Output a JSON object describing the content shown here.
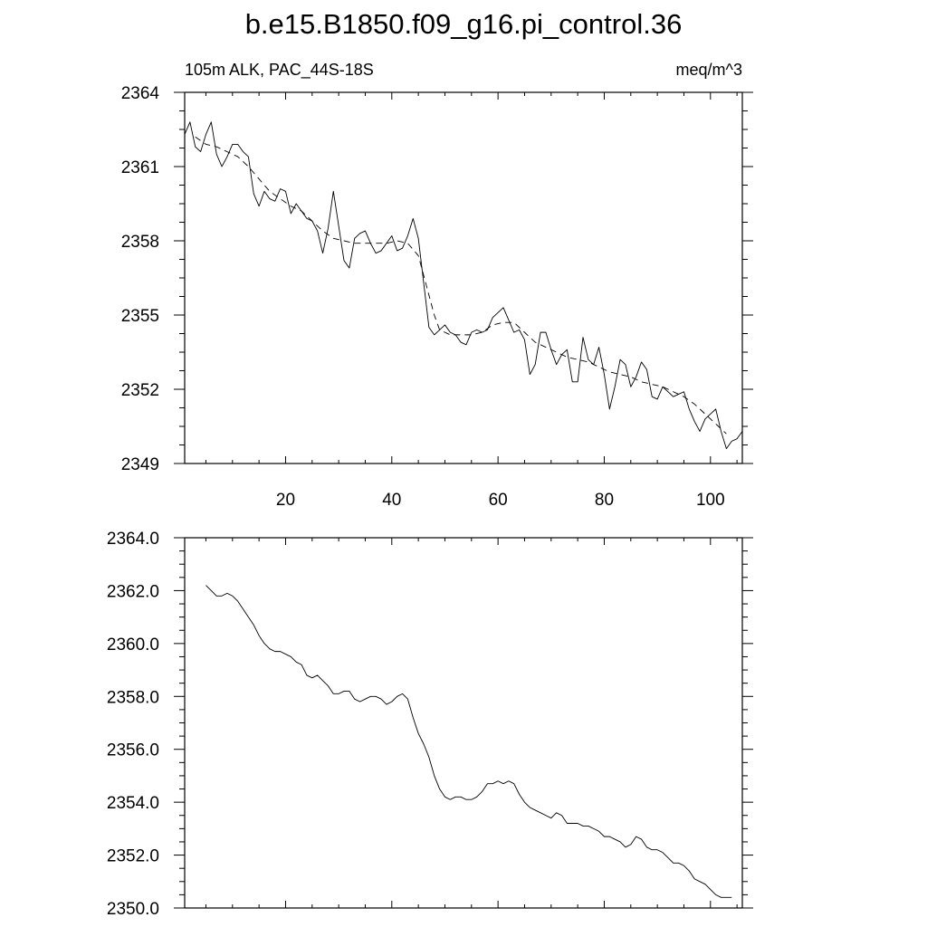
{
  "page": {
    "title": "b.e15.B1850.f09_g16.pi_control.36",
    "left_string": "105m ALK, PAC_44S-18S",
    "right_string": "meq/m^3"
  },
  "chart_data": [
    {
      "type": "line",
      "title": "",
      "xlabel": "",
      "ylabel": "",
      "xlim": [
        1,
        106
      ],
      "ylim": [
        2349,
        2364
      ],
      "grid": false,
      "x_ticks": [
        20,
        40,
        60,
        80,
        100
      ],
      "x_tick_labels": [
        "20",
        "40",
        "60",
        "80",
        "100"
      ],
      "y_ticks": [
        2349,
        2352,
        2355,
        2358,
        2361,
        2364
      ],
      "y_tick_labels": [
        "2349",
        "2352",
        "2355",
        "2358",
        "2361",
        "2364"
      ],
      "series": [
        {
          "style": "solid",
          "x": [
            1,
            2,
            3,
            4,
            5,
            6,
            7,
            8,
            9,
            10,
            11,
            12,
            13,
            14,
            15,
            16,
            17,
            18,
            19,
            20,
            21,
            22,
            23,
            24,
            25,
            26,
            27,
            28,
            29,
            30,
            31,
            32,
            33,
            34,
            35,
            36,
            37,
            38,
            39,
            40,
            41,
            42,
            43,
            44,
            45,
            46,
            47,
            48,
            49,
            50,
            51,
            52,
            53,
            54,
            55,
            56,
            57,
            58,
            59,
            60,
            61,
            62,
            63,
            64,
            65,
            66,
            67,
            68,
            69,
            70,
            71,
            72,
            73,
            74,
            75,
            76,
            77,
            78,
            79,
            80,
            81,
            82,
            83,
            84,
            85,
            86,
            87,
            88,
            89,
            90,
            91,
            92,
            93,
            94,
            95,
            96,
            97,
            98,
            99,
            100,
            101,
            102,
            103,
            104,
            105,
            106
          ],
          "values": [
            2362.3,
            2362.8,
            2361.8,
            2361.6,
            2362.3,
            2362.8,
            2361.5,
            2361.0,
            2361.4,
            2361.9,
            2361.9,
            2361.6,
            2361.4,
            2359.9,
            2359.4,
            2360.0,
            2359.7,
            2359.6,
            2360.1,
            2360.0,
            2359.1,
            2359.5,
            2359.2,
            2358.9,
            2358.8,
            2358.4,
            2357.5,
            2358.5,
            2360.0,
            2358.6,
            2357.2,
            2356.9,
            2358.1,
            2358.3,
            2358.4,
            2357.9,
            2357.5,
            2357.6,
            2357.9,
            2358.2,
            2357.6,
            2357.7,
            2358.2,
            2358.9,
            2358.1,
            2356.3,
            2354.5,
            2354.2,
            2354.4,
            2354.6,
            2354.3,
            2354.2,
            2353.9,
            2353.8,
            2354.3,
            2354.4,
            2354.3,
            2354.4,
            2354.9,
            2355.1,
            2355.3,
            2354.8,
            2354.3,
            2354.4,
            2354.0,
            2352.6,
            2353.0,
            2354.3,
            2354.3,
            2353.6,
            2353.0,
            2353.4,
            2353.6,
            2352.3,
            2352.3,
            2354.1,
            2353.2,
            2353.0,
            2353.7,
            2352.6,
            2351.2,
            2352.1,
            2353.2,
            2353.0,
            2352.1,
            2352.5,
            2353.1,
            2352.8,
            2351.7,
            2351.6,
            2352.1,
            2351.9,
            2351.7,
            2351.8,
            2351.9,
            2351.2,
            2350.7,
            2350.3,
            2350.8,
            2351.0,
            2351.2,
            2350.3,
            2349.6,
            2349.9,
            2350.0,
            2350.3
          ]
        },
        {
          "style": "dashed",
          "x": [
            3,
            5,
            7,
            9,
            11,
            13,
            15,
            17,
            19,
            21,
            23,
            25,
            27,
            29,
            31,
            33,
            35,
            37,
            39,
            41,
            43,
            45,
            46,
            47,
            48,
            49,
            51,
            53,
            55,
            57,
            59,
            61,
            63,
            65,
            67,
            69,
            71,
            73,
            75,
            77,
            79,
            81,
            83,
            85,
            87,
            89,
            91,
            93,
            95,
            97,
            99,
            101,
            103
          ],
          "values": [
            2362.2,
            2361.9,
            2361.8,
            2361.6,
            2361.4,
            2361.0,
            2360.5,
            2360.0,
            2359.7,
            2359.4,
            2359.2,
            2358.8,
            2358.4,
            2358.1,
            2358.0,
            2357.9,
            2357.9,
            2357.9,
            2357.9,
            2358.0,
            2357.9,
            2357.4,
            2356.6,
            2355.8,
            2355.0,
            2354.4,
            2354.2,
            2354.2,
            2354.2,
            2354.3,
            2354.6,
            2354.7,
            2354.7,
            2354.3,
            2353.9,
            2353.7,
            2353.5,
            2353.3,
            2353.2,
            2353.1,
            2352.9,
            2352.7,
            2352.6,
            2352.5,
            2352.3,
            2352.2,
            2352.1,
            2351.9,
            2351.7,
            2351.4,
            2351.0,
            2350.6,
            2350.2
          ]
        }
      ]
    },
    {
      "type": "line",
      "title": "",
      "xlabel": "",
      "ylabel": "",
      "xlim": [
        1,
        106
      ],
      "ylim": [
        2350,
        2364
      ],
      "grid": false,
      "x_ticks": [
        20,
        40,
        60,
        80,
        100
      ],
      "x_tick_labels": [],
      "y_ticks": [
        2350,
        2352,
        2354,
        2356,
        2358,
        2360,
        2362,
        2364
      ],
      "y_tick_labels": [
        "2350.0",
        "2352.0",
        "2354.0",
        "2356.0",
        "2358.0",
        "2360.0",
        "2362.0",
        "2364.0"
      ],
      "series": [
        {
          "style": "solid",
          "x": [
            5,
            6,
            7,
            8,
            9,
            10,
            11,
            12,
            13,
            14,
            15,
            16,
            17,
            18,
            19,
            20,
            21,
            22,
            23,
            24,
            25,
            26,
            27,
            28,
            29,
            30,
            31,
            32,
            33,
            34,
            35,
            36,
            37,
            38,
            39,
            40,
            41,
            42,
            43,
            44,
            45,
            46,
            47,
            48,
            49,
            50,
            51,
            52,
            53,
            54,
            55,
            56,
            57,
            58,
            59,
            60,
            61,
            62,
            63,
            64,
            65,
            66,
            67,
            68,
            69,
            70,
            71,
            72,
            73,
            74,
            75,
            76,
            77,
            78,
            79,
            80,
            81,
            82,
            83,
            84,
            85,
            86,
            87,
            88,
            89,
            90,
            91,
            92,
            93,
            94,
            95,
            96,
            97,
            98,
            99,
            100,
            101,
            102,
            103,
            104
          ],
          "values": [
            2362.2,
            2362.0,
            2361.8,
            2361.8,
            2361.9,
            2361.8,
            2361.6,
            2361.3,
            2361.0,
            2360.7,
            2360.3,
            2360.0,
            2359.8,
            2359.7,
            2359.7,
            2359.6,
            2359.5,
            2359.3,
            2359.2,
            2358.8,
            2358.7,
            2358.8,
            2358.6,
            2358.4,
            2358.1,
            2358.1,
            2358.2,
            2358.2,
            2357.9,
            2357.8,
            2357.9,
            2358.0,
            2358.0,
            2357.9,
            2357.7,
            2357.8,
            2358.0,
            2358.1,
            2357.9,
            2357.2,
            2356.6,
            2356.2,
            2355.7,
            2355.0,
            2354.5,
            2354.2,
            2354.1,
            2354.2,
            2354.2,
            2354.1,
            2354.1,
            2354.2,
            2354.4,
            2354.7,
            2354.7,
            2354.8,
            2354.7,
            2354.8,
            2354.7,
            2354.3,
            2354.0,
            2353.8,
            2353.7,
            2353.6,
            2353.5,
            2353.4,
            2353.6,
            2353.5,
            2353.2,
            2353.2,
            2353.2,
            2353.1,
            2353.1,
            2353.0,
            2352.9,
            2352.7,
            2352.7,
            2352.6,
            2352.5,
            2352.3,
            2352.4,
            2352.7,
            2352.6,
            2352.3,
            2352.2,
            2352.2,
            2352.1,
            2351.9,
            2351.7,
            2351.7,
            2351.6,
            2351.4,
            2351.1,
            2351.0,
            2350.9,
            2350.7,
            2350.5,
            2350.4,
            2350.4,
            2350.4
          ]
        }
      ]
    }
  ]
}
